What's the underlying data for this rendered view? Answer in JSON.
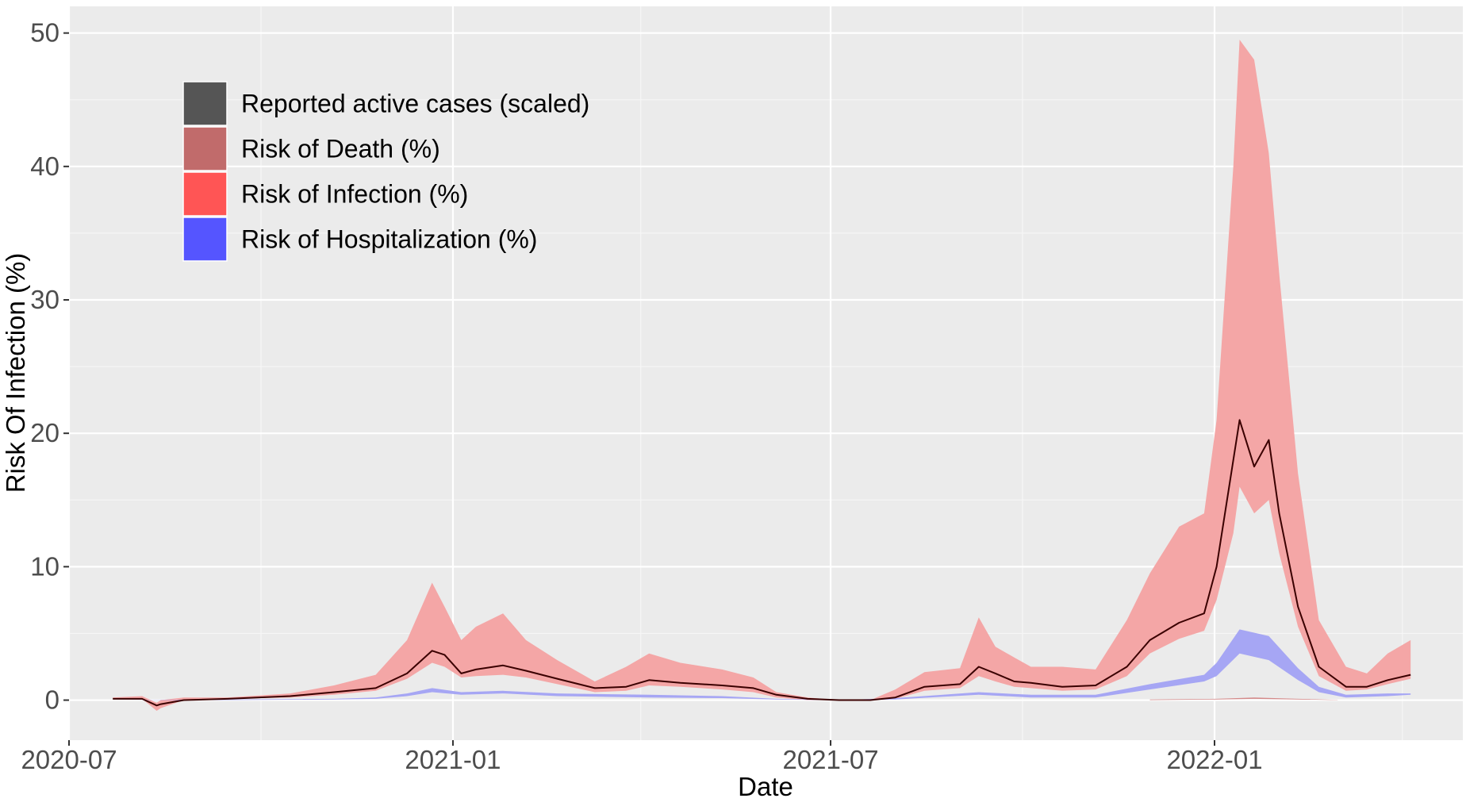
{
  "chart_data": {
    "type": "area",
    "title": "",
    "xlabel": "Date",
    "ylabel": "Risk Of Infection (%)",
    "x_range": [
      "2020-07-01",
      "2022-04-30"
    ],
    "ylim": [
      -3,
      52
    ],
    "x_ticks": [
      "2020-07",
      "2021-01",
      "2021-07",
      "2022-01"
    ],
    "x_minor_ticks": [
      "2020-10",
      "2021-04",
      "2021-10",
      "2022-04"
    ],
    "y_ticks": [
      0,
      10,
      20,
      30,
      40,
      50
    ],
    "grid": true,
    "legend": {
      "placement": "top-left",
      "entries": [
        {
          "name": "Reported active cases (scaled)",
          "color": "#555555"
        },
        {
          "name": "Risk of Death (%)",
          "color": "#c16b6b"
        },
        {
          "name": "Risk of Infection (%)",
          "color": "#ff5555"
        },
        {
          "name": "Risk of Hospitalization (%)",
          "color": "#5555ff"
        }
      ]
    },
    "series": [
      {
        "name": "Reported active cases (scaled)",
        "color": "#3a0000",
        "kind": "line",
        "x": [
          "2020-07-22",
          "2020-08-05",
          "2020-08-12",
          "2020-08-14",
          "2020-08-25",
          "2020-09-15",
          "2020-10-15",
          "2020-11-05",
          "2020-11-25",
          "2020-12-10",
          "2020-12-22",
          "2020-12-28",
          "2021-01-05",
          "2021-01-12",
          "2021-01-25",
          "2021-02-05",
          "2021-02-20",
          "2021-03-10",
          "2021-03-25",
          "2021-04-05",
          "2021-04-20",
          "2021-05-10",
          "2021-05-25",
          "2021-06-05",
          "2021-06-20",
          "2021-07-05",
          "2021-07-20",
          "2021-08-01",
          "2021-08-15",
          "2021-09-01",
          "2021-09-10",
          "2021-09-18",
          "2021-09-27",
          "2021-10-05",
          "2021-10-20",
          "2021-11-05",
          "2021-11-20",
          "2021-12-01",
          "2021-12-15",
          "2021-12-27",
          "2022-01-02",
          "2022-01-10",
          "2022-01-13",
          "2022-01-20",
          "2022-01-27",
          "2022-02-01",
          "2022-02-10",
          "2022-02-20",
          "2022-03-05",
          "2022-03-15",
          "2022-03-25",
          "2022-04-05"
        ],
        "values": [
          0.1,
          0.1,
          -0.4,
          -0.3,
          0.0,
          0.1,
          0.3,
          0.6,
          0.9,
          2.0,
          3.7,
          3.4,
          2.0,
          2.3,
          2.6,
          2.2,
          1.6,
          0.9,
          1.0,
          1.5,
          1.3,
          1.1,
          0.9,
          0.4,
          0.1,
          0.0,
          0.0,
          0.2,
          1.0,
          1.2,
          2.5,
          2.0,
          1.4,
          1.3,
          1.0,
          1.1,
          2.5,
          4.5,
          5.8,
          6.5,
          10.0,
          18.0,
          21.0,
          17.5,
          19.5,
          14.0,
          7.0,
          2.5,
          1.0,
          1.0,
          1.5,
          1.9
        ]
      },
      {
        "name": "Risk of Infection (%)",
        "color": "#f4a6a6",
        "kind": "band",
        "x": [
          "2020-07-22",
          "2020-08-05",
          "2020-08-12",
          "2020-08-14",
          "2020-08-25",
          "2020-09-15",
          "2020-10-15",
          "2020-11-05",
          "2020-11-25",
          "2020-12-10",
          "2020-12-22",
          "2020-12-28",
          "2021-01-05",
          "2021-01-12",
          "2021-01-25",
          "2021-02-05",
          "2021-02-20",
          "2021-03-10",
          "2021-03-25",
          "2021-04-05",
          "2021-04-20",
          "2021-05-10",
          "2021-05-25",
          "2021-06-05",
          "2021-06-20",
          "2021-07-05",
          "2021-07-20",
          "2021-08-01",
          "2021-08-15",
          "2021-09-01",
          "2021-09-10",
          "2021-09-18",
          "2021-09-27",
          "2021-10-05",
          "2021-10-20",
          "2021-11-05",
          "2021-11-20",
          "2021-12-01",
          "2021-12-15",
          "2021-12-27",
          "2022-01-02",
          "2022-01-10",
          "2022-01-13",
          "2022-01-20",
          "2022-01-27",
          "2022-02-01",
          "2022-02-10",
          "2022-02-20",
          "2022-03-05",
          "2022-03-15",
          "2022-03-25",
          "2022-04-05"
        ],
        "lower": [
          0.1,
          0.1,
          -0.8,
          -0.6,
          0.0,
          0.1,
          0.2,
          0.4,
          0.7,
          1.6,
          2.8,
          2.5,
          1.7,
          1.8,
          1.9,
          1.7,
          1.2,
          0.6,
          0.7,
          1.1,
          1.0,
          0.8,
          0.6,
          0.2,
          0.0,
          0.0,
          0.0,
          0.1,
          0.7,
          0.9,
          1.8,
          1.4,
          1.0,
          0.9,
          0.7,
          0.8,
          1.8,
          3.5,
          4.6,
          5.2,
          7.5,
          12.5,
          16.0,
          14.0,
          15.0,
          11.0,
          5.5,
          1.8,
          0.7,
          0.8,
          1.2,
          1.6
        ],
        "upper": [
          0.2,
          0.3,
          -0.2,
          0.0,
          0.2,
          0.2,
          0.5,
          1.1,
          1.9,
          4.5,
          8.8,
          7.0,
          4.5,
          5.5,
          6.5,
          4.5,
          3.0,
          1.4,
          2.5,
          3.5,
          2.8,
          2.3,
          1.7,
          0.6,
          0.2,
          0.0,
          0.0,
          0.8,
          2.1,
          2.4,
          6.2,
          4.0,
          3.2,
          2.5,
          2.5,
          2.3,
          6.0,
          9.5,
          13.0,
          14.0,
          21.0,
          40.0,
          49.5,
          48.0,
          41.0,
          32.0,
          17.0,
          6.0,
          2.5,
          2.0,
          3.5,
          4.5
        ]
      },
      {
        "name": "Risk of Hospitalization (%)",
        "color": "#a6a6f4",
        "kind": "band",
        "x": [
          "2020-07-22",
          "2020-09-15",
          "2020-11-05",
          "2020-11-25",
          "2020-12-10",
          "2020-12-22",
          "2021-01-05",
          "2021-01-25",
          "2021-02-20",
          "2021-04-05",
          "2021-05-10",
          "2021-06-05",
          "2021-07-05",
          "2021-08-01",
          "2021-09-10",
          "2021-10-05",
          "2021-11-05",
          "2021-12-01",
          "2021-12-27",
          "2022-01-02",
          "2022-01-13",
          "2022-01-27",
          "2022-02-10",
          "2022-02-20",
          "2022-03-05",
          "2022-03-25",
          "2022-04-05"
        ],
        "lower": [
          0.0,
          0.0,
          0.05,
          0.1,
          0.3,
          0.6,
          0.4,
          0.5,
          0.3,
          0.2,
          0.15,
          0.05,
          0.0,
          0.05,
          0.4,
          0.2,
          0.2,
          0.8,
          1.4,
          1.8,
          3.5,
          3.0,
          1.5,
          0.6,
          0.2,
          0.3,
          0.4
        ],
        "upper": [
          0.0,
          0.05,
          0.1,
          0.2,
          0.5,
          0.9,
          0.6,
          0.7,
          0.5,
          0.4,
          0.3,
          0.1,
          0.0,
          0.15,
          0.6,
          0.4,
          0.4,
          1.2,
          1.9,
          2.8,
          5.3,
          4.8,
          2.4,
          1.0,
          0.4,
          0.5,
          0.5
        ]
      },
      {
        "name": "Risk of Death (%)",
        "color": "#d48a8a",
        "kind": "band",
        "x": [
          "2021-12-01",
          "2022-01-02",
          "2022-01-20",
          "2022-02-10",
          "2022-03-01"
        ],
        "lower": [
          0.0,
          0.05,
          0.1,
          0.05,
          0.0
        ],
        "upper": [
          0.05,
          0.1,
          0.2,
          0.1,
          0.02
        ]
      }
    ]
  }
}
